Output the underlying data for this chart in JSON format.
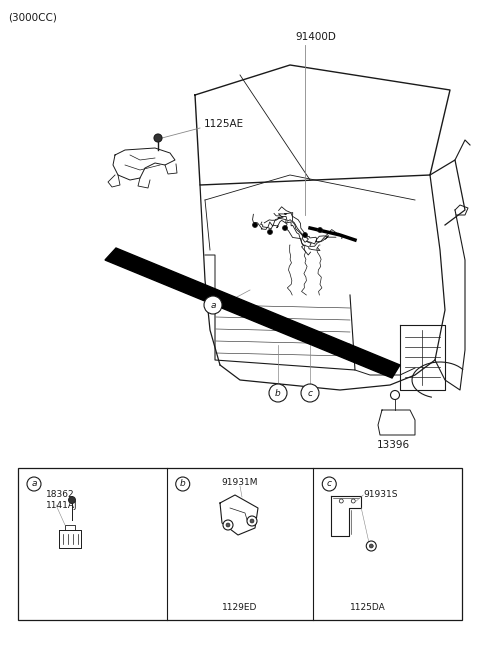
{
  "bg_color": "#ffffff",
  "line_color": "#1a1a1a",
  "gray_color": "#888888",
  "title": "(3000CC)",
  "labels": {
    "part1": "91400D",
    "part2": "1125AE",
    "part3": "13396",
    "box_a1": "18362",
    "box_a2": "1141AJ",
    "box_b1": "91931M",
    "box_b2": "1129ED",
    "box_c1": "91931S",
    "box_c2": "1125DA"
  },
  "fig_width": 4.8,
  "fig_height": 6.55,
  "dpi": 100
}
